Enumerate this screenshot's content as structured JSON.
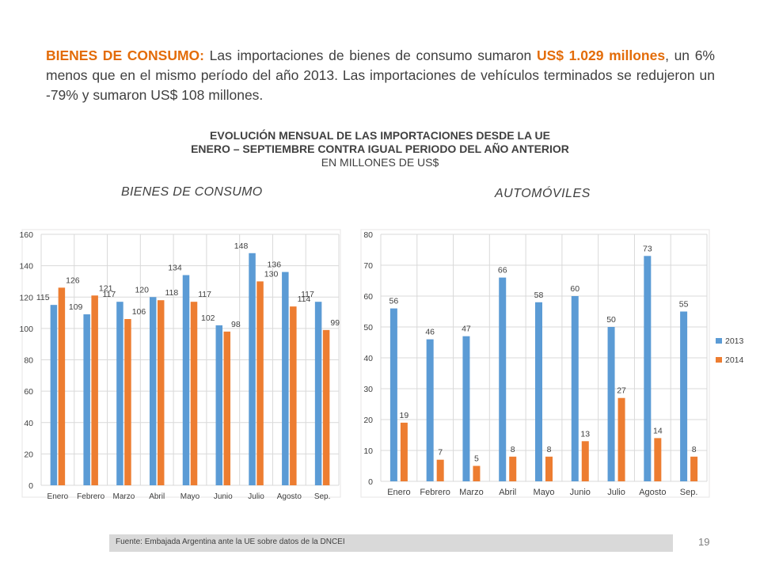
{
  "intro": {
    "lead": "BIENES DE CONSUMO:",
    "text1": " Las importaciones de bienes de consumo sumaron ",
    "amount": "US$ 1.029 millones",
    "text2": ", un 6% menos que en el mismo período del año 2013. Las importaciones de vehículos terminados se redujeron un -79% y sumaron US$ 108 millones."
  },
  "heading": {
    "line1": "EVOLUCIÓN MENSUAL DE LAS IMPORTACIONES DESDE LA UE",
    "line2": "ENERO – SEPTIEMBRE CONTRA IGUAL PERIODO DEL AÑO ANTERIOR",
    "line3": "EN MILLONES DE US$"
  },
  "subtitles": {
    "left": "BIENES DE CONSUMO",
    "right": "AUTOMÓVILES"
  },
  "colors": {
    "series2013": "#5b9bd5",
    "series2014": "#ed7d31",
    "accent": "#e36c09",
    "grid": "#d9d9d9"
  },
  "chart_data": [
    {
      "type": "bar",
      "title": "BIENES DE CONSUMO",
      "categories": [
        "Enero",
        "Febrero",
        "Marzo",
        "Abril",
        "Mayo",
        "Junio",
        "Julio",
        "Agosto",
        "Sep."
      ],
      "series": [
        {
          "name": "",
          "values": [
            115,
            109,
            117,
            120,
            134,
            102,
            148,
            136,
            117
          ]
        },
        {
          "name": "",
          "values": [
            126,
            121,
            106,
            118,
            117,
            98,
            130,
            114,
            99
          ]
        }
      ],
      "ylim": [
        0,
        160
      ],
      "yticks": [
        0,
        20,
        40,
        60,
        80,
        100,
        120,
        140,
        160
      ],
      "grid": true,
      "legend": "none"
    },
    {
      "type": "bar",
      "title": "AUTOMÓVILES",
      "categories": [
        "Enero",
        "Febrero",
        "Marzo",
        "Abril",
        "Mayo",
        "Junio",
        "Julio",
        "Agosto",
        "Sep."
      ],
      "series": [
        {
          "name": "2013",
          "values": [
            56,
            46,
            47,
            66,
            58,
            60,
            50,
            73,
            55
          ]
        },
        {
          "name": "2014",
          "values": [
            19,
            7,
            5,
            8,
            8,
            13,
            27,
            14,
            8
          ]
        }
      ],
      "ylim": [
        0,
        80
      ],
      "yticks": [
        0,
        10,
        20,
        30,
        40,
        50,
        60,
        70,
        80
      ],
      "grid": true,
      "legend": "right"
    }
  ],
  "footer": {
    "source": "Fuente: Embajada Argentina ante la UE sobre datos de la DNCEI",
    "page": "19"
  }
}
